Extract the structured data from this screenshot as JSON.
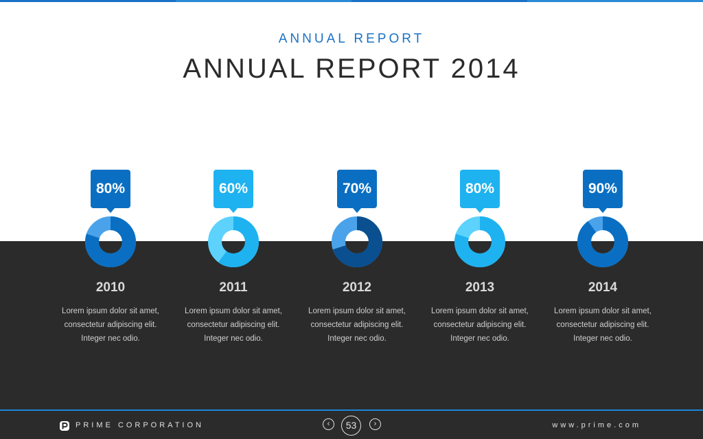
{
  "header": {
    "subtitle": "ANNUAL REPORT",
    "title": "ANNUAL REPORT 2014"
  },
  "accent_colors": [
    "#0a6fc2",
    "#1eb2f0",
    "#4aa3ea",
    "#0a4f8f"
  ],
  "items": [
    {
      "percent_label": "80%",
      "percent": 80,
      "year": "2010",
      "bubble_color": "#0a6fc2",
      "fill_color": "#0a6fc2",
      "rest_color": "#4aa3ea",
      "desc": [
        "Lorem ipsum dolor sit amet,",
        "consectetur adipiscing elit.",
        "Integer nec odio."
      ]
    },
    {
      "percent_label": "60%",
      "percent": 60,
      "year": "2011",
      "bubble_color": "#1eb2f0",
      "fill_color": "#1eb2f0",
      "rest_color": "#5cd2fc",
      "desc": [
        "Lorem ipsum dolor sit amet,",
        "consectetur adipiscing elit.",
        "Integer nec odio."
      ]
    },
    {
      "percent_label": "70%",
      "percent": 70,
      "year": "2012",
      "bubble_color": "#0a6fc2",
      "fill_color": "#0a4f8f",
      "rest_color": "#4aa3ea",
      "desc": [
        "Lorem ipsum dolor sit amet,",
        "consectetur adipiscing elit.",
        "Integer nec odio."
      ]
    },
    {
      "percent_label": "80%",
      "percent": 80,
      "year": "2013",
      "bubble_color": "#1eb2f0",
      "fill_color": "#1eb2f0",
      "rest_color": "#5cd2fc",
      "desc": [
        "Lorem ipsum dolor sit amet,",
        "consectetur adipiscing elit.",
        "Integer nec odio."
      ]
    },
    {
      "percent_label": "90%",
      "percent": 90,
      "year": "2014",
      "bubble_color": "#0a6fc2",
      "fill_color": "#0a6fc2",
      "rest_color": "#4aa3ea",
      "desc": [
        "Lorem ipsum dolor sit amet,",
        "consectetur adipiscing elit.",
        "Integer nec odio."
      ]
    }
  ],
  "footer": {
    "brand_icon": "prime-logo-icon",
    "brand_name": "PRIME CORPORATION",
    "prev_icon": "chevron-left-icon",
    "prev_glyph": "‹",
    "page_number": "53",
    "next_icon": "chevron-right-icon",
    "next_glyph": "›",
    "website": "www.prime.com"
  }
}
